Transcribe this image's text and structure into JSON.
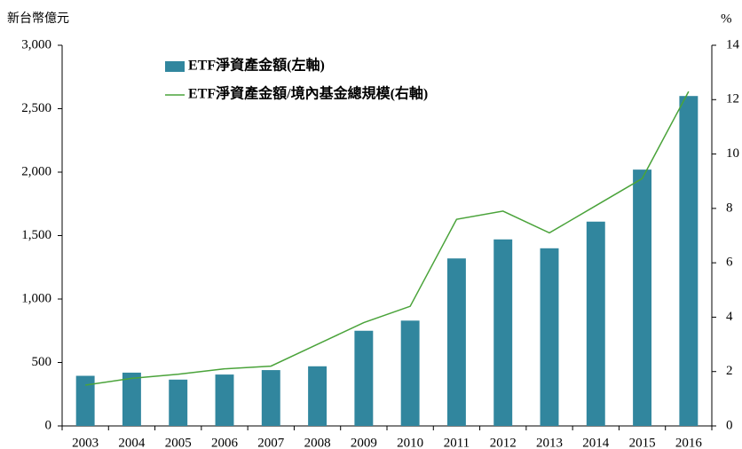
{
  "chart_data": {
    "type": "bar_line",
    "y_label": "新台幣億元",
    "y2_label": "%",
    "categories": [
      "2003",
      "2004",
      "2005",
      "2006",
      "2007",
      "2008",
      "2009",
      "2010",
      "2011",
      "2012",
      "2013",
      "2014",
      "2015",
      "2016"
    ],
    "series": [
      {
        "name": "ETF淨資產金額(左軸)",
        "type": "bar",
        "color": "#31869e",
        "values": [
          395,
          420,
          365,
          405,
          440,
          470,
          750,
          830,
          1320,
          1470,
          1400,
          1610,
          2020,
          2600
        ]
      },
      {
        "name": "ETF淨資產金額/境內基金總規模(右軸)",
        "type": "line",
        "axis": "y2",
        "color": "#4aa33a",
        "values": [
          1.5,
          1.75,
          1.9,
          2.1,
          2.2,
          3.0,
          3.8,
          4.4,
          7.6,
          7.9,
          7.1,
          8.1,
          9.1,
          12.3
        ]
      }
    ],
    "ylim": [
      0,
      3000
    ],
    "yticks": [
      0,
      500,
      {
        "value": 1000,
        "label": "1,000"
      },
      {
        "value": 1500,
        "label": "1,500"
      },
      {
        "value": 2000,
        "label": "2,000"
      },
      {
        "value": 2500,
        "label": "2,500"
      },
      {
        "value": 3000,
        "label": "3,000"
      }
    ],
    "y2lim": [
      0,
      14
    ],
    "y2ticks": [
      0,
      2,
      4,
      6,
      8,
      10,
      12,
      14
    ]
  }
}
